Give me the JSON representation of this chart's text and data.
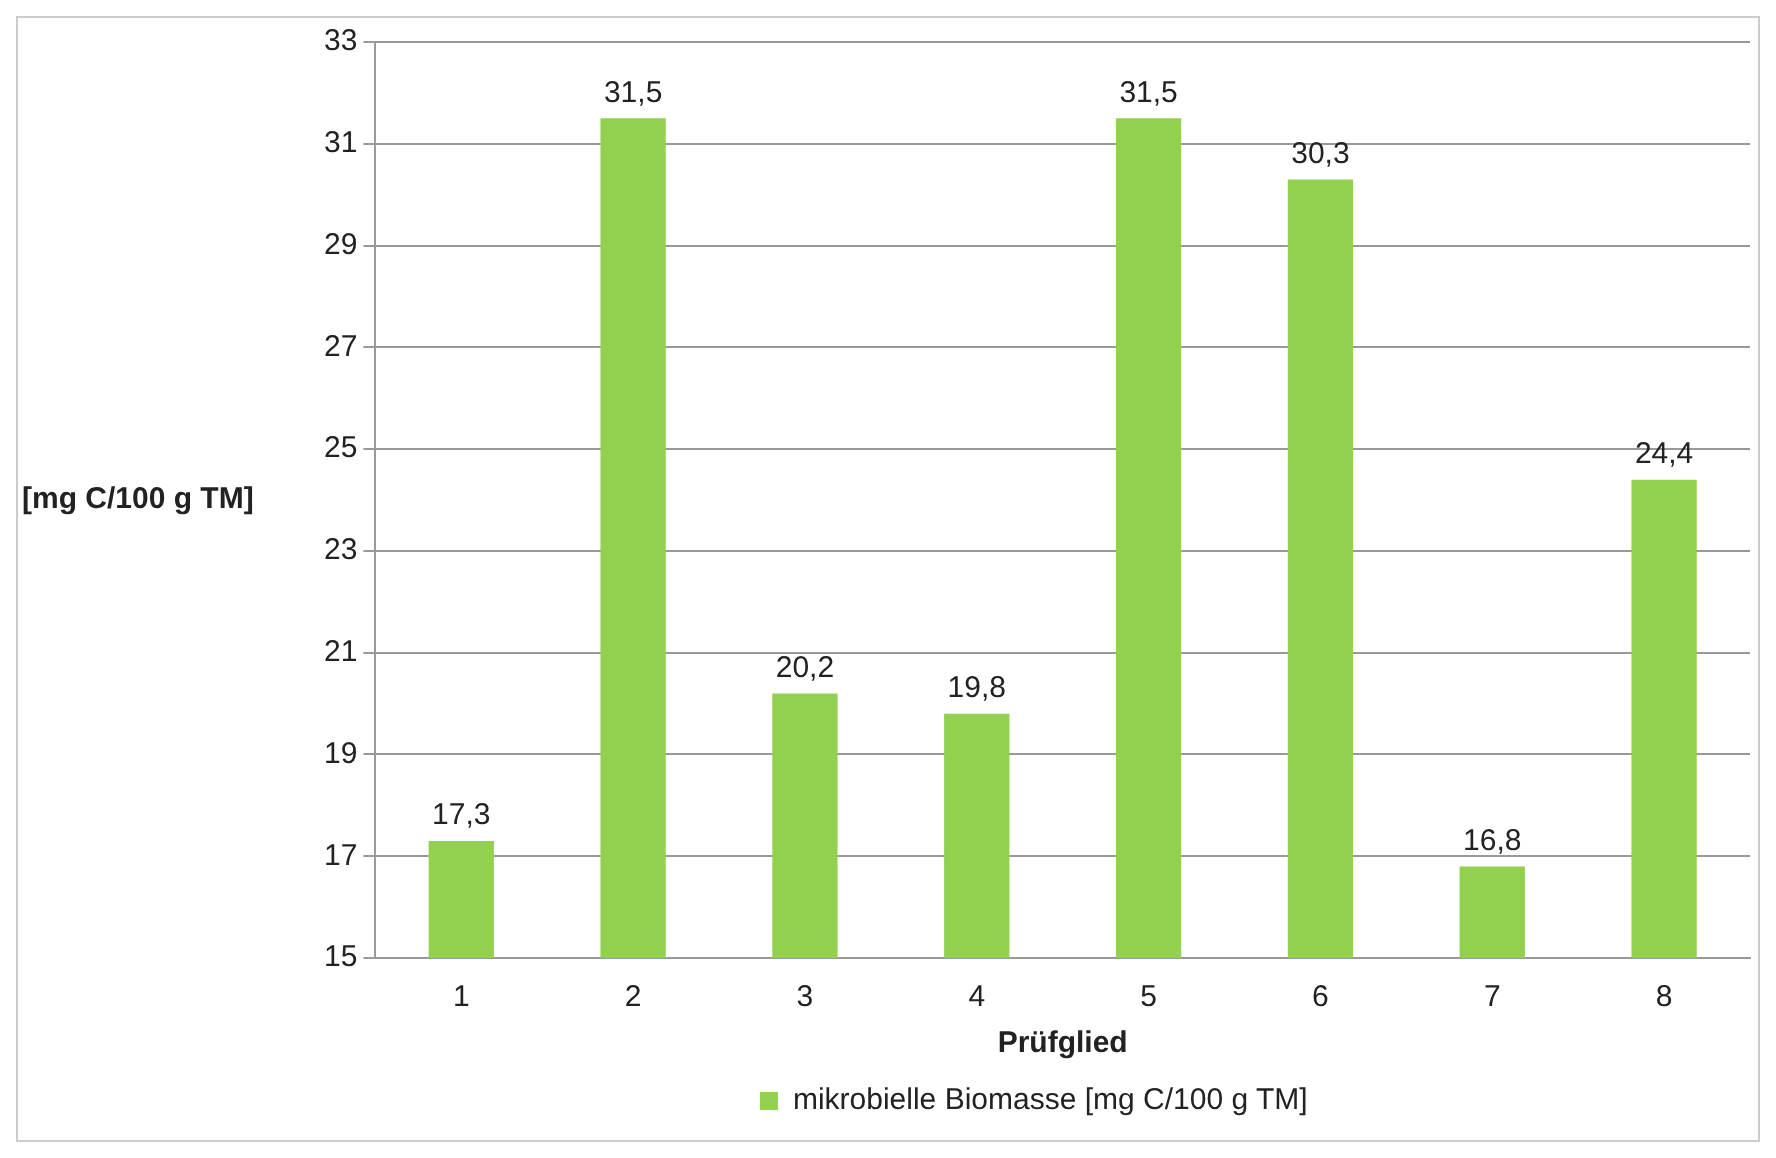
{
  "chart_data": {
    "type": "bar",
    "xlabel": "Prüfglied",
    "ylabel": "[mg C/100 g TM]",
    "categories": [
      "1",
      "2",
      "3",
      "4",
      "5",
      "6",
      "7",
      "8"
    ],
    "series": [
      {
        "name": "mikrobielle Biomasse [mg C/100 g TM]",
        "color": "#92d050",
        "values": [
          17.3,
          31.5,
          20.2,
          19.8,
          31.5,
          30.3,
          16.8,
          24.4
        ],
        "value_labels": [
          "17,3",
          "31,5",
          "20,2",
          "19,8",
          "31,5",
          "30,3",
          "16,8",
          "24,4"
        ]
      }
    ],
    "ylim": [
      15,
      33
    ],
    "yticks": [
      15,
      17,
      19,
      21,
      23,
      25,
      27,
      29,
      31,
      33
    ],
    "grid": "y",
    "legend": "bottom"
  }
}
